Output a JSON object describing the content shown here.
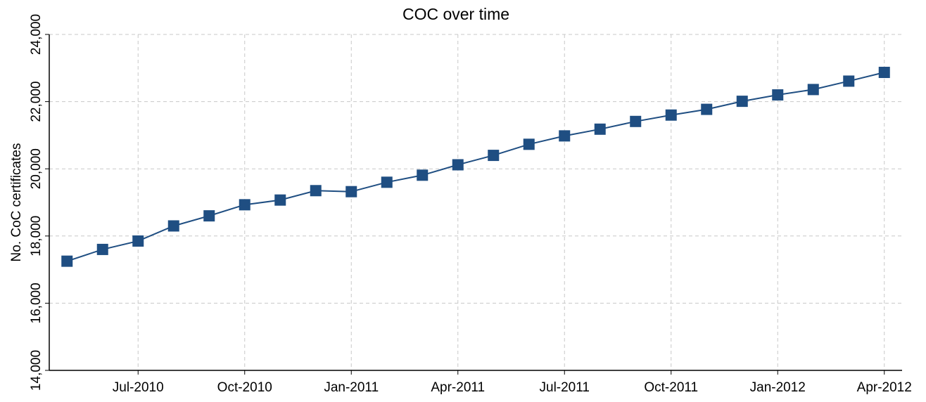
{
  "chart_data": {
    "type": "line",
    "title": "COC over time",
    "y_label": "No. CoC certificates",
    "x": [
      "2010-05",
      "2010-06",
      "2010-07",
      "2010-08",
      "2010-09",
      "2010-10",
      "2010-11",
      "2010-12",
      "2011-01",
      "2011-02",
      "2011-03",
      "2011-04",
      "2011-05",
      "2011-06",
      "2011-07",
      "2011-08",
      "2011-09",
      "2011-10",
      "2011-11",
      "2011-12",
      "2012-01",
      "2012-02",
      "2012-03",
      "2012-04"
    ],
    "series": [
      {
        "name": "COC",
        "color": "#1f4e82",
        "values": [
          17250,
          17600,
          17850,
          18300,
          18600,
          18930,
          19070,
          19350,
          19320,
          19600,
          19810,
          20120,
          20400,
          20730,
          20980,
          21180,
          21410,
          21600,
          21770,
          22010,
          22200,
          22360,
          22610,
          22870
        ]
      }
    ],
    "xticks": [
      {
        "value": "2010-07",
        "label": "Jul-2010"
      },
      {
        "value": "2010-10",
        "label": "Oct-2010"
      },
      {
        "value": "2011-01",
        "label": "Jan-2011"
      },
      {
        "value": "2011-04",
        "label": "Apr-2011"
      },
      {
        "value": "2011-07",
        "label": "Jul-2011"
      },
      {
        "value": "2011-10",
        "label": "Oct-2011"
      },
      {
        "value": "2012-01",
        "label": "Jan-2012"
      },
      {
        "value": "2012-04",
        "label": "Apr-2012"
      }
    ],
    "ylim": [
      14000,
      24000
    ],
    "yticks": [
      {
        "value": 14000,
        "label": "14,000"
      },
      {
        "value": 16000,
        "label": "16,000"
      },
      {
        "value": 18000,
        "label": "18,000"
      },
      {
        "value": 20000,
        "label": "20,000"
      },
      {
        "value": 22000,
        "label": "22,000"
      },
      {
        "value": 24000,
        "label": "24,000"
      }
    ],
    "grid": true
  }
}
